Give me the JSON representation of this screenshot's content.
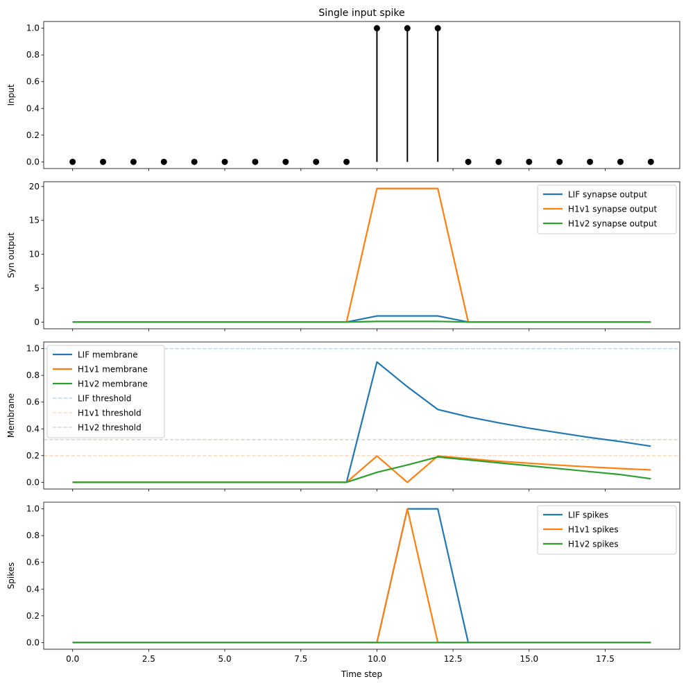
{
  "chart_data": [
    {
      "type": "stem",
      "title": "Single input spike",
      "xlabel": "",
      "ylabel": "Input",
      "xlim": [
        -0.95,
        19.95
      ],
      "ylim": [
        -0.05,
        1.05
      ],
      "yticks": [
        0.0,
        0.2,
        0.4,
        0.6,
        0.8,
        1.0
      ],
      "ytick_labels": [
        "0.0",
        "0.2",
        "0.4",
        "0.6",
        "0.8",
        "1.0"
      ],
      "color": "#000000",
      "series": [
        {
          "x": [
            0,
            1,
            2,
            3,
            4,
            5,
            6,
            7,
            8,
            9,
            10,
            11,
            12,
            13,
            14,
            15,
            16,
            17,
            18,
            19
          ],
          "values": [
            0,
            0,
            0,
            0,
            0,
            0,
            0,
            0,
            0,
            0,
            1,
            1,
            1,
            0,
            0,
            0,
            0,
            0,
            0,
            0
          ]
        }
      ]
    },
    {
      "type": "line",
      "title": "",
      "xlabel": "",
      "ylabel": "Syn output",
      "xlim": [
        -0.95,
        19.95
      ],
      "ylim": [
        -0.99,
        20.7
      ],
      "yticks": [
        0,
        5,
        10,
        15,
        20
      ],
      "ytick_labels": [
        "0",
        "5",
        "10",
        "15",
        "20"
      ],
      "legend": "top-right",
      "series": [
        {
          "name": "LIF synapse output",
          "color": "#1f77b4",
          "x": [
            0,
            1,
            2,
            3,
            4,
            5,
            6,
            7,
            8,
            9,
            10,
            11,
            12,
            13,
            14,
            15,
            16,
            17,
            18,
            19
          ],
          "values": [
            0,
            0,
            0,
            0,
            0,
            0,
            0,
            0,
            0,
            0,
            0.9,
            0.9,
            0.9,
            0,
            0,
            0,
            0,
            0,
            0,
            0
          ]
        },
        {
          "name": "H1v1 synapse output",
          "color": "#ff7f0e",
          "x": [
            0,
            1,
            2,
            3,
            4,
            5,
            6,
            7,
            8,
            9,
            10,
            11,
            12,
            13,
            14,
            15,
            16,
            17,
            18,
            19
          ],
          "values": [
            0,
            0,
            0,
            0,
            0,
            0,
            0,
            0,
            0,
            0,
            19.7,
            19.7,
            19.7,
            0,
            0,
            0,
            0,
            0,
            0,
            0
          ]
        },
        {
          "name": "H1v2 synapse output",
          "color": "#2ca02c",
          "x": [
            0,
            1,
            2,
            3,
            4,
            5,
            6,
            7,
            8,
            9,
            10,
            11,
            12,
            13,
            14,
            15,
            16,
            17,
            18,
            19
          ],
          "values": [
            0,
            0,
            0,
            0,
            0,
            0,
            0,
            0,
            0,
            0,
            0.1,
            0.1,
            0.1,
            0,
            0,
            0,
            0,
            0,
            0,
            0
          ]
        }
      ]
    },
    {
      "type": "line",
      "title": "",
      "xlabel": "",
      "ylabel": "Membrane",
      "xlim": [
        -0.95,
        19.95
      ],
      "ylim": [
        -0.05,
        1.05
      ],
      "yticks": [
        0.0,
        0.2,
        0.4,
        0.6,
        0.8,
        1.0
      ],
      "ytick_labels": [
        "0.0",
        "0.2",
        "0.4",
        "0.6",
        "0.8",
        "1.0"
      ],
      "legend": "top-left",
      "series": [
        {
          "name": "LIF membrane",
          "color": "#1f77b4",
          "x": [
            0,
            1,
            2,
            3,
            4,
            5,
            6,
            7,
            8,
            9,
            10,
            11,
            12,
            13,
            14,
            15,
            16,
            17,
            18,
            19
          ],
          "values": [
            0,
            0,
            0,
            0,
            0,
            0,
            0,
            0,
            0,
            0,
            0.9,
            0.715,
            0.545,
            0.49,
            0.445,
            0.405,
            0.37,
            0.335,
            0.305,
            0.27
          ]
        },
        {
          "name": "H1v1 membrane",
          "color": "#ff7f0e",
          "x": [
            0,
            1,
            2,
            3,
            4,
            5,
            6,
            7,
            8,
            9,
            10,
            11,
            12,
            13,
            14,
            15,
            16,
            17,
            18,
            19
          ],
          "values": [
            0,
            0,
            0,
            0,
            0,
            0,
            0,
            0,
            0,
            0,
            0.197,
            0.0,
            0.197,
            0.177,
            0.158,
            0.143,
            0.128,
            0.115,
            0.103,
            0.093
          ]
        },
        {
          "name": "H1v2 membrane",
          "color": "#2ca02c",
          "x": [
            0,
            1,
            2,
            3,
            4,
            5,
            6,
            7,
            8,
            9,
            10,
            11,
            12,
            13,
            14,
            15,
            16,
            17,
            18,
            19
          ],
          "values": [
            0,
            0,
            0,
            0,
            0,
            0,
            0,
            0,
            0,
            0,
            0.075,
            0.13,
            0.19,
            0.168,
            0.146,
            0.124,
            0.102,
            0.08,
            0.058,
            0.027
          ]
        }
      ],
      "thresholds": [
        {
          "name": "LIF threshold",
          "color": "#1f77b4",
          "value": 1.0
        },
        {
          "name": "H1v1 threshold",
          "color": "#ff7f0e",
          "value": 0.2
        },
        {
          "name": "H1v2 threshold",
          "color": "#2ca02c",
          "value": 0.32
        }
      ]
    },
    {
      "type": "line",
      "title": "",
      "xlabel": "Time step",
      "ylabel": "Spikes",
      "xlim": [
        -0.95,
        19.95
      ],
      "ylim": [
        -0.05,
        1.05
      ],
      "yticks": [
        0.0,
        0.2,
        0.4,
        0.6,
        0.8,
        1.0
      ],
      "ytick_labels": [
        "0.0",
        "0.2",
        "0.4",
        "0.6",
        "0.8",
        "1.0"
      ],
      "xticks": [
        0,
        2.5,
        5,
        7.5,
        10,
        12.5,
        15,
        17.5
      ],
      "xtick_labels": [
        "0.0",
        "2.5",
        "5.0",
        "7.5",
        "10.0",
        "12.5",
        "15.0",
        "17.5"
      ],
      "legend": "top-right",
      "series": [
        {
          "name": "LIF spikes",
          "color": "#1f77b4",
          "x": [
            0,
            1,
            2,
            3,
            4,
            5,
            6,
            7,
            8,
            9,
            10,
            11,
            12,
            13,
            14,
            15,
            16,
            17,
            18,
            19
          ],
          "values": [
            0,
            0,
            0,
            0,
            0,
            0,
            0,
            0,
            0,
            0,
            0,
            1,
            1,
            0,
            0,
            0,
            0,
            0,
            0,
            0
          ]
        },
        {
          "name": "H1v1 spikes",
          "color": "#ff7f0e",
          "x": [
            0,
            1,
            2,
            3,
            4,
            5,
            6,
            7,
            8,
            9,
            10,
            11,
            12,
            13,
            14,
            15,
            16,
            17,
            18,
            19
          ],
          "values": [
            0,
            0,
            0,
            0,
            0,
            0,
            0,
            0,
            0,
            0,
            0,
            1,
            0,
            0,
            0,
            0,
            0,
            0,
            0,
            0
          ]
        },
        {
          "name": "H1v2 spikes",
          "color": "#2ca02c",
          "x": [
            0,
            1,
            2,
            3,
            4,
            5,
            6,
            7,
            8,
            9,
            10,
            11,
            12,
            13,
            14,
            15,
            16,
            17,
            18,
            19
          ],
          "values": [
            0,
            0,
            0,
            0,
            0,
            0,
            0,
            0,
            0,
            0,
            0,
            0,
            0,
            0,
            0,
            0,
            0,
            0,
            0,
            0
          ]
        }
      ]
    }
  ]
}
